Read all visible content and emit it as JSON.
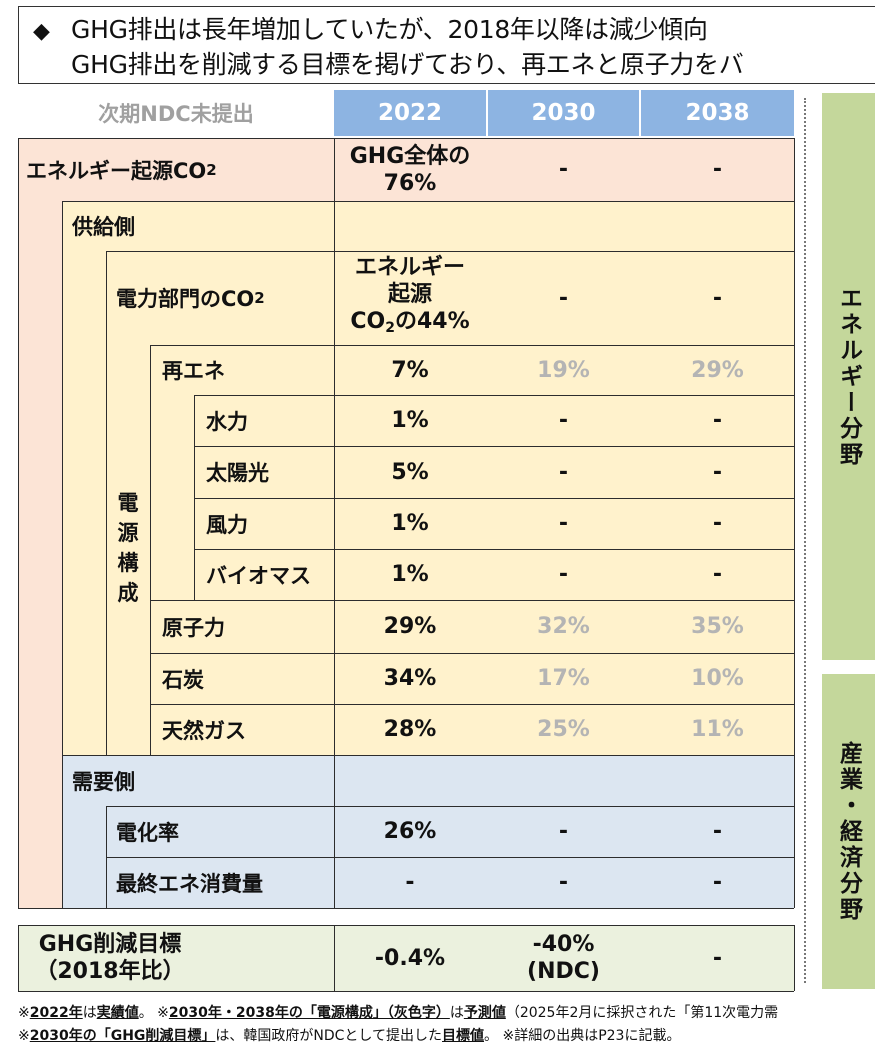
{
  "header": {
    "bullet": "◆",
    "line1": "GHG排出は長年増加していたが、2018年以降は減少傾向",
    "line2": "GHG排出を削減する目標を掲げており、再エネと原子力をバ"
  },
  "table": {
    "corner_label": "次期NDC未提出",
    "years": [
      "2022",
      "2030",
      "2038"
    ],
    "rows": {
      "energy_co2": {
        "label_main": "エネルギー起源CO",
        "label_sub": "2",
        "v2022_line1": "GHG全体の",
        "v2022_line2": "76%",
        "v2030": "-",
        "v2038": "-"
      },
      "supply": {
        "label": "供給側"
      },
      "power_co2": {
        "label_main": "電力部門のCO",
        "label_sub": "2",
        "v2022_line1": "エネルギー",
        "v2022_line2": "起源",
        "v2022_line3_main": "CO",
        "v2022_line3_sub": "2",
        "v2022_line3_tail": "の44%",
        "v2030": "-",
        "v2038": "-"
      },
      "power_mix_label": [
        "電",
        "源",
        "構",
        "成"
      ],
      "renewables": {
        "label": "再エネ",
        "v2022": "7%",
        "v2030": "19%",
        "v2038": "29%"
      },
      "hydro": {
        "label": "水力",
        "v2022": "1%",
        "v2030": "-",
        "v2038": "-"
      },
      "solar": {
        "label": "太陽光",
        "v2022": "5%",
        "v2030": "-",
        "v2038": "-"
      },
      "wind": {
        "label": "風力",
        "v2022": "1%",
        "v2030": "-",
        "v2038": "-"
      },
      "biomass": {
        "label": "バイオマス",
        "v2022": "1%",
        "v2030": "-",
        "v2038": "-"
      },
      "nuclear": {
        "label": "原子力",
        "v2022": "29%",
        "v2030": "32%",
        "v2038": "35%"
      },
      "coal": {
        "label": "石炭",
        "v2022": "34%",
        "v2030": "17%",
        "v2038": "10%"
      },
      "gas": {
        "label": "天然ガス",
        "v2022": "28%",
        "v2030": "25%",
        "v2038": "11%"
      },
      "demand": {
        "label": "需要側"
      },
      "electrification": {
        "label": "電化率",
        "v2022": "26%",
        "v2030": "-",
        "v2038": "-"
      },
      "final_energy": {
        "label": "最終エネ消費量",
        "v2022": "-",
        "v2030": "-",
        "v2038": "-"
      }
    },
    "target": {
      "label_line1": "GHG削減目標",
      "label_line2": "（2018年比）",
      "v2022": "-0.4%",
      "v2030_line1": "-40%",
      "v2030_line2": "(NDC)",
      "v2038": "-"
    }
  },
  "side": {
    "energy_label": "エネルギー分野",
    "industry_label": "産業・経済分野"
  },
  "footer": {
    "line1_prefix": "※",
    "line1_b1": "2022年",
    "line1_t1": "は",
    "line1_b2": "実績値",
    "line1_t2": "。 ※",
    "line1_b3": "2030年・2038年の「電源構成」（灰色字）",
    "line1_t3": "は",
    "line1_b4": "予測値",
    "line1_t4": "（2025年2月に採択された「第11次電力需",
    "line2_prefix": "※",
    "line2_b1": "2030年の「GHG削減目標」",
    "line2_t1": "は、韓国政府がNDCとして提出した",
    "line2_b2": "目標値",
    "line2_t2": "。 ※詳細の出典はP23に記載。"
  },
  "colors": {
    "energy_bg": "#fce4d6",
    "supply_bg": "#fff2cc",
    "demand_bg": "#dce6f1",
    "target_bg": "#ebf1de",
    "year_header_bg": "#8db4e2",
    "side_bg": "#c4d79b",
    "forecast_text": "#b4b4b4"
  }
}
